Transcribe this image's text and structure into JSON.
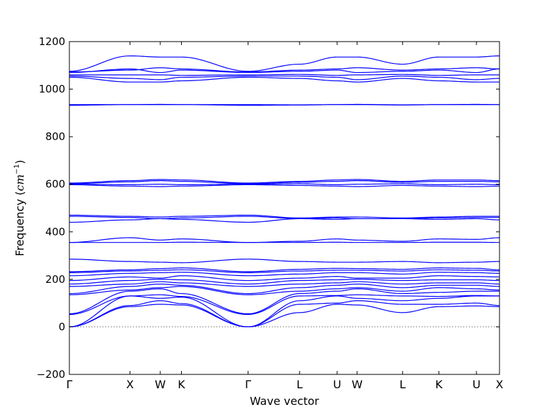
{
  "chart_data": {
    "type": "line",
    "title": "",
    "xlabel": "Wave vector",
    "ylabel_text": "Frequency (",
    "ylabel_unit": "cm",
    "ylabel_exp": "−1",
    "ylabel_close": ")",
    "ylim": [
      -200,
      1200
    ],
    "yticks": [
      -200,
      0,
      200,
      400,
      600,
      800,
      1000,
      1200
    ],
    "ytick_labels": [
      "−200",
      "0",
      "200",
      "400",
      "600",
      "800",
      "1000",
      "1200"
    ],
    "xlim": [
      0,
      7.1
    ],
    "xticks": [
      {
        "x": 0.0,
        "label": "Γ"
      },
      {
        "x": 1.0,
        "label": "X"
      },
      {
        "x": 1.5,
        "label": "W"
      },
      {
        "x": 1.85,
        "label": "K"
      },
      {
        "x": 2.95,
        "label": "Γ"
      },
      {
        "x": 3.8,
        "label": "L"
      },
      {
        "x": 4.42,
        "label": "U"
      },
      {
        "x": 4.75,
        "label": "W"
      },
      {
        "x": 5.5,
        "label": "L"
      },
      {
        "x": 6.1,
        "label": "K"
      },
      {
        "x": 6.72,
        "label": "U"
      },
      {
        "x": 7.1,
        "label": "X"
      }
    ],
    "zero_line": {
      "y": 0,
      "style": "dotted"
    },
    "grid": false,
    "line_color": "#0000ff",
    "series": [
      {
        "x": [
          0,
          1,
          1.5,
          1.85,
          2.95,
          3.8,
          4.42,
          4.75,
          5.5,
          6.1,
          6.72,
          7.1
        ],
        "y": [
          0,
          85,
          95,
          92,
          0,
          60,
          95,
          92,
          60,
          85,
          88,
          85
        ]
      },
      {
        "x": [
          0,
          1,
          1.5,
          1.85,
          2.95,
          3.8,
          4.42,
          4.75,
          5.5,
          6.1,
          6.72,
          7.1
        ],
        "y": [
          0,
          90,
          110,
          98,
          0,
          95,
          100,
          110,
          95,
          95,
          100,
          90
        ]
      },
      {
        "x": [
          0,
          1,
          1.5,
          1.85,
          2.95,
          3.8,
          4.42,
          4.75,
          5.5,
          6.1,
          6.72,
          7.1
        ],
        "y": [
          0,
          130,
          120,
          125,
          0,
          110,
          130,
          120,
          110,
          120,
          130,
          130
        ]
      },
      {
        "x": [
          0,
          1,
          1.5,
          1.85,
          2.95,
          3.8,
          4.42,
          4.75,
          5.5,
          6.1,
          6.72,
          7.1
        ],
        "y": [
          52,
          130,
          135,
          128,
          52,
          130,
          132,
          135,
          130,
          128,
          132,
          130
        ]
      },
      {
        "x": [
          0,
          1,
          1.5,
          1.85,
          2.95,
          3.8,
          4.42,
          4.75,
          5.5,
          6.1,
          6.72,
          7.1
        ],
        "y": [
          55,
          150,
          160,
          140,
          55,
          140,
          150,
          160,
          140,
          145,
          150,
          150
        ]
      },
      {
        "x": [
          0,
          1,
          1.5,
          1.85,
          2.95,
          3.8,
          4.42,
          4.75,
          5.5,
          6.1,
          6.72,
          7.1
        ],
        "y": [
          135,
          155,
          165,
          170,
          135,
          150,
          160,
          165,
          150,
          165,
          160,
          155
        ]
      },
      {
        "x": [
          0,
          1,
          1.5,
          1.85,
          2.95,
          3.8,
          4.42,
          4.75,
          5.5,
          6.1,
          6.72,
          7.1
        ],
        "y": [
          140,
          170,
          180,
          175,
          140,
          165,
          175,
          180,
          165,
          175,
          175,
          170
        ]
      },
      {
        "x": [
          0,
          1,
          1.5,
          1.85,
          2.95,
          3.8,
          4.42,
          4.75,
          5.5,
          6.1,
          6.72,
          7.1
        ],
        "y": [
          170,
          180,
          190,
          185,
          170,
          180,
          185,
          190,
          180,
          185,
          185,
          180
        ]
      },
      {
        "x": [
          0,
          1,
          1.5,
          1.85,
          2.95,
          3.8,
          4.42,
          4.75,
          5.5,
          6.1,
          6.72,
          7.1
        ],
        "y": [
          180,
          195,
          200,
          198,
          180,
          195,
          198,
          200,
          195,
          198,
          198,
          195
        ]
      },
      {
        "x": [
          0,
          1,
          1.5,
          1.85,
          2.95,
          3.8,
          4.42,
          4.75,
          5.5,
          6.1,
          6.72,
          7.1
        ],
        "y": [
          195,
          210,
          205,
          215,
          195,
          205,
          212,
          205,
          205,
          215,
          212,
          210
        ]
      },
      {
        "x": [
          0,
          1,
          1.5,
          1.85,
          2.95,
          3.8,
          4.42,
          4.75,
          5.5,
          6.1,
          6.72,
          7.1
        ],
        "y": [
          215,
          225,
          228,
          230,
          215,
          222,
          228,
          228,
          222,
          230,
          228,
          225
        ]
      },
      {
        "x": [
          0,
          1,
          1.5,
          1.85,
          2.95,
          3.8,
          4.42,
          4.75,
          5.5,
          6.1,
          6.72,
          7.1
        ],
        "y": [
          228,
          235,
          238,
          240,
          228,
          235,
          238,
          238,
          235,
          240,
          238,
          235
        ]
      },
      {
        "x": [
          0,
          1,
          1.5,
          1.85,
          2.95,
          3.8,
          4.42,
          4.75,
          5.5,
          6.1,
          6.72,
          7.1
        ],
        "y": [
          232,
          240,
          245,
          248,
          232,
          242,
          246,
          245,
          242,
          248,
          246,
          240
        ]
      },
      {
        "x": [
          0,
          1,
          1.5,
          1.85,
          2.95,
          3.8,
          4.42,
          4.75,
          5.5,
          6.1,
          6.72,
          7.1
        ],
        "y": [
          285,
          275,
          272,
          270,
          285,
          275,
          272,
          272,
          275,
          270,
          272,
          275
        ]
      },
      {
        "x": [
          0,
          1,
          1.5,
          1.85,
          2.95,
          3.8,
          4.42,
          4.75,
          5.5,
          6.1,
          6.72,
          7.1
        ],
        "y": [
          355,
          355,
          355,
          356,
          355,
          355,
          356,
          355,
          355,
          356,
          356,
          355
        ]
      },
      {
        "x": [
          0,
          1,
          1.5,
          1.85,
          2.95,
          3.8,
          4.42,
          4.75,
          5.5,
          6.1,
          6.72,
          7.1
        ],
        "y": [
          355,
          375,
          365,
          370,
          355,
          360,
          370,
          365,
          360,
          370,
          368,
          375
        ]
      },
      {
        "x": [
          0,
          1,
          1.5,
          1.85,
          2.95,
          3.8,
          4.42,
          4.75,
          5.5,
          6.1,
          6.72,
          7.1
        ],
        "y": [
          440,
          450,
          455,
          452,
          440,
          455,
          452,
          455,
          455,
          452,
          455,
          450
        ]
      },
      {
        "x": [
          0,
          1,
          1.5,
          1.85,
          2.95,
          3.8,
          4.42,
          4.75,
          5.5,
          6.1,
          6.72,
          7.1
        ],
        "y": [
          465,
          460,
          455,
          458,
          465,
          455,
          458,
          455,
          455,
          458,
          460,
          460
        ]
      },
      {
        "x": [
          0,
          1,
          1.5,
          1.85,
          2.95,
          3.8,
          4.42,
          4.75,
          5.5,
          6.1,
          6.72,
          7.1
        ],
        "y": [
          470,
          465,
          462,
          465,
          470,
          458,
          462,
          462,
          458,
          462,
          465,
          465
        ]
      },
      {
        "x": [
          0,
          1,
          1.5,
          1.85,
          2.95,
          3.8,
          4.42,
          4.75,
          5.5,
          6.1,
          6.72,
          7.1
        ],
        "y": [
          598,
          592,
          590,
          592,
          598,
          595,
          592,
          590,
          595,
          592,
          590,
          592
        ]
      },
      {
        "x": [
          0,
          1,
          1.5,
          1.85,
          2.95,
          3.8,
          4.42,
          4.75,
          5.5,
          6.1,
          6.72,
          7.1
        ],
        "y": [
          600,
          598,
          600,
          598,
          600,
          602,
          598,
          600,
          602,
          598,
          600,
          598
        ]
      },
      {
        "x": [
          0,
          1,
          1.5,
          1.85,
          2.95,
          3.8,
          4.42,
          4.75,
          5.5,
          6.1,
          6.72,
          7.1
        ],
        "y": [
          602,
          610,
          615,
          612,
          602,
          608,
          612,
          615,
          608,
          612,
          612,
          610
        ]
      },
      {
        "x": [
          0,
          1,
          1.5,
          1.85,
          2.95,
          3.8,
          4.42,
          4.75,
          5.5,
          6.1,
          6.72,
          7.1
        ],
        "y": [
          605,
          615,
          620,
          618,
          605,
          612,
          618,
          620,
          612,
          618,
          618,
          615
        ]
      },
      {
        "x": [
          0,
          1,
          1.5,
          1.85,
          2.95,
          3.8,
          4.42,
          4.75,
          5.5,
          6.1,
          6.72,
          7.1
        ],
        "y": [
          932,
          935,
          935,
          935,
          932,
          933,
          935,
          935,
          933,
          935,
          935,
          935
        ]
      },
      {
        "x": [
          0,
          1,
          1.5,
          1.85,
          2.95,
          3.8,
          4.42,
          4.75,
          5.5,
          6.1,
          6.72,
          7.1
        ],
        "y": [
          935,
          935,
          936,
          935,
          935,
          934,
          935,
          936,
          934,
          935,
          936,
          935
        ]
      },
      {
        "x": [
          0,
          1,
          1.5,
          1.85,
          2.95,
          3.8,
          4.42,
          4.75,
          5.5,
          6.1,
          6.72,
          7.1
        ],
        "y": [
          1050,
          1030,
          1030,
          1035,
          1050,
          1045,
          1035,
          1030,
          1045,
          1035,
          1030,
          1030
        ]
      },
      {
        "x": [
          0,
          1,
          1.5,
          1.85,
          2.95,
          3.8,
          4.42,
          4.75,
          5.5,
          6.1,
          6.72,
          7.1
        ],
        "y": [
          1055,
          1045,
          1040,
          1050,
          1055,
          1055,
          1050,
          1040,
          1055,
          1050,
          1040,
          1045
        ]
      },
      {
        "x": [
          0,
          1,
          1.5,
          1.85,
          2.95,
          3.8,
          4.42,
          4.75,
          5.5,
          6.1,
          6.72,
          7.1
        ],
        "y": [
          1060,
          1060,
          1060,
          1058,
          1060,
          1062,
          1058,
          1060,
          1062,
          1058,
          1060,
          1060
        ]
      },
      {
        "x": [
          0,
          1,
          1.5,
          1.85,
          2.95,
          3.8,
          4.42,
          4.75,
          5.5,
          6.1,
          6.72,
          7.1
        ],
        "y": [
          1070,
          1085,
          1070,
          1080,
          1070,
          1075,
          1080,
          1070,
          1075,
          1080,
          1070,
          1085
        ]
      },
      {
        "x": [
          0,
          1,
          1.5,
          1.85,
          2.95,
          3.8,
          4.42,
          4.75,
          5.5,
          6.1,
          6.72,
          7.1
        ],
        "y": [
          1072,
          1080,
          1090,
          1085,
          1072,
          1080,
          1085,
          1090,
          1080,
          1085,
          1090,
          1085
        ]
      },
      {
        "x": [
          0,
          1,
          1.5,
          1.85,
          2.95,
          3.8,
          4.42,
          4.75,
          5.5,
          6.1,
          6.72,
          7.1
        ],
        "y": [
          1075,
          1140,
          1135,
          1135,
          1075,
          1105,
          1135,
          1135,
          1105,
          1135,
          1135,
          1140
        ]
      }
    ]
  }
}
